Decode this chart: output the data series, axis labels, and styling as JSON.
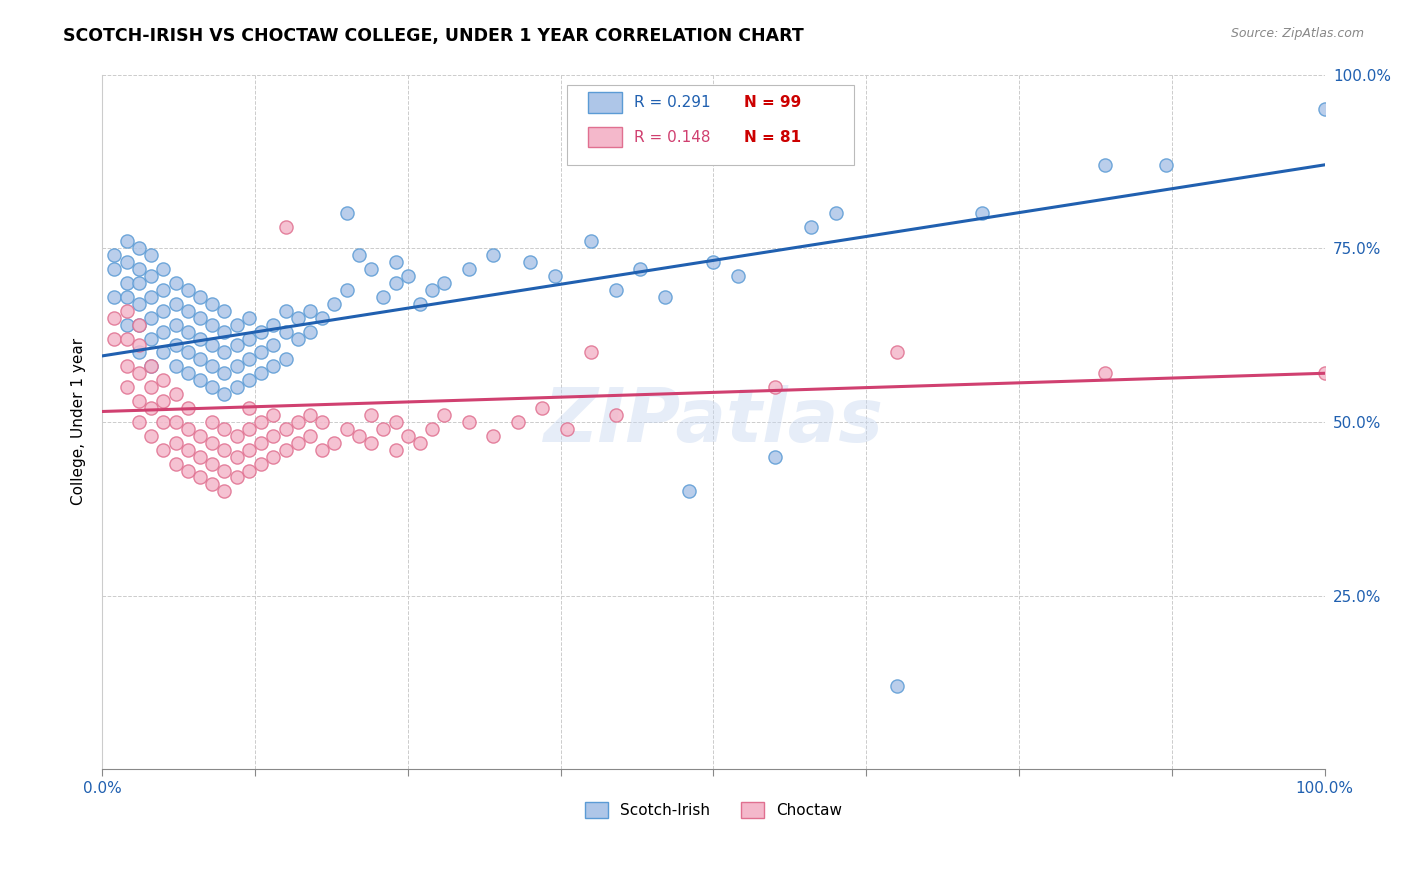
{
  "title": "SCOTCH-IRISH VS CHOCTAW COLLEGE, UNDER 1 YEAR CORRELATION CHART",
  "source": "Source: ZipAtlas.com",
  "ylabel": "College, Under 1 year",
  "xlabel": "",
  "xlim": [
    0.0,
    1.0
  ],
  "ylim": [
    0.0,
    1.0
  ],
  "xticks": [
    0.0,
    0.125,
    0.25,
    0.375,
    0.5,
    0.625,
    0.75,
    0.875,
    1.0
  ],
  "yticks": [
    0.0,
    0.25,
    0.5,
    0.75,
    1.0
  ],
  "xtick_labels": [
    "0.0%",
    "",
    "",
    "",
    "",
    "",
    "",
    "",
    "100.0%"
  ],
  "ytick_labels_left": [
    "",
    "25.0%",
    "50.0%",
    "75.0%",
    "100.0%"
  ],
  "ytick_labels_right": [
    "",
    "25.0%",
    "50.0%",
    "75.0%",
    "100.0%"
  ],
  "scotch_irish_R": 0.291,
  "scotch_irish_N": 99,
  "choctaw_R": 0.148,
  "choctaw_N": 81,
  "scotch_irish_color": "#aec6e8",
  "scotch_irish_edge": "#5b9bd5",
  "choctaw_color": "#f4b8cb",
  "choctaw_edge": "#e07090",
  "line_scotch_color": "#2060b0",
  "line_choctaw_color": "#d04070",
  "watermark": "ZIPatlas",
  "scotch_irish_points": [
    [
      0.01,
      0.68
    ],
    [
      0.01,
      0.72
    ],
    [
      0.01,
      0.74
    ],
    [
      0.02,
      0.64
    ],
    [
      0.02,
      0.68
    ],
    [
      0.02,
      0.7
    ],
    [
      0.02,
      0.73
    ],
    [
      0.02,
      0.76
    ],
    [
      0.03,
      0.6
    ],
    [
      0.03,
      0.64
    ],
    [
      0.03,
      0.67
    ],
    [
      0.03,
      0.7
    ],
    [
      0.03,
      0.72
    ],
    [
      0.03,
      0.75
    ],
    [
      0.04,
      0.58
    ],
    [
      0.04,
      0.62
    ],
    [
      0.04,
      0.65
    ],
    [
      0.04,
      0.68
    ],
    [
      0.04,
      0.71
    ],
    [
      0.04,
      0.74
    ],
    [
      0.05,
      0.6
    ],
    [
      0.05,
      0.63
    ],
    [
      0.05,
      0.66
    ],
    [
      0.05,
      0.69
    ],
    [
      0.05,
      0.72
    ],
    [
      0.06,
      0.58
    ],
    [
      0.06,
      0.61
    ],
    [
      0.06,
      0.64
    ],
    [
      0.06,
      0.67
    ],
    [
      0.06,
      0.7
    ],
    [
      0.07,
      0.57
    ],
    [
      0.07,
      0.6
    ],
    [
      0.07,
      0.63
    ],
    [
      0.07,
      0.66
    ],
    [
      0.07,
      0.69
    ],
    [
      0.08,
      0.56
    ],
    [
      0.08,
      0.59
    ],
    [
      0.08,
      0.62
    ],
    [
      0.08,
      0.65
    ],
    [
      0.08,
      0.68
    ],
    [
      0.09,
      0.55
    ],
    [
      0.09,
      0.58
    ],
    [
      0.09,
      0.61
    ],
    [
      0.09,
      0.64
    ],
    [
      0.09,
      0.67
    ],
    [
      0.1,
      0.54
    ],
    [
      0.1,
      0.57
    ],
    [
      0.1,
      0.6
    ],
    [
      0.1,
      0.63
    ],
    [
      0.1,
      0.66
    ],
    [
      0.11,
      0.55
    ],
    [
      0.11,
      0.58
    ],
    [
      0.11,
      0.61
    ],
    [
      0.11,
      0.64
    ],
    [
      0.12,
      0.56
    ],
    [
      0.12,
      0.59
    ],
    [
      0.12,
      0.62
    ],
    [
      0.12,
      0.65
    ],
    [
      0.13,
      0.57
    ],
    [
      0.13,
      0.6
    ],
    [
      0.13,
      0.63
    ],
    [
      0.14,
      0.58
    ],
    [
      0.14,
      0.61
    ],
    [
      0.14,
      0.64
    ],
    [
      0.15,
      0.59
    ],
    [
      0.15,
      0.63
    ],
    [
      0.15,
      0.66
    ],
    [
      0.16,
      0.62
    ],
    [
      0.16,
      0.65
    ],
    [
      0.17,
      0.63
    ],
    [
      0.17,
      0.66
    ],
    [
      0.18,
      0.65
    ],
    [
      0.19,
      0.67
    ],
    [
      0.2,
      0.8
    ],
    [
      0.2,
      0.69
    ],
    [
      0.21,
      0.74
    ],
    [
      0.22,
      0.72
    ],
    [
      0.23,
      0.68
    ],
    [
      0.24,
      0.7
    ],
    [
      0.24,
      0.73
    ],
    [
      0.25,
      0.71
    ],
    [
      0.26,
      0.67
    ],
    [
      0.27,
      0.69
    ],
    [
      0.28,
      0.7
    ],
    [
      0.3,
      0.72
    ],
    [
      0.32,
      0.74
    ],
    [
      0.35,
      0.73
    ],
    [
      0.37,
      0.71
    ],
    [
      0.4,
      0.76
    ],
    [
      0.42,
      0.69
    ],
    [
      0.44,
      0.72
    ],
    [
      0.46,
      0.68
    ],
    [
      0.48,
      0.4
    ],
    [
      0.5,
      0.73
    ],
    [
      0.52,
      0.71
    ],
    [
      0.55,
      0.45
    ],
    [
      0.58,
      0.78
    ],
    [
      0.6,
      0.8
    ],
    [
      0.65,
      0.12
    ],
    [
      0.72,
      0.8
    ],
    [
      0.82,
      0.87
    ],
    [
      0.87,
      0.87
    ],
    [
      1.0,
      0.95
    ]
  ],
  "choctaw_points": [
    [
      0.01,
      0.62
    ],
    [
      0.01,
      0.65
    ],
    [
      0.02,
      0.55
    ],
    [
      0.02,
      0.58
    ],
    [
      0.02,
      0.62
    ],
    [
      0.02,
      0.66
    ],
    [
      0.03,
      0.5
    ],
    [
      0.03,
      0.53
    ],
    [
      0.03,
      0.57
    ],
    [
      0.03,
      0.61
    ],
    [
      0.03,
      0.64
    ],
    [
      0.04,
      0.48
    ],
    [
      0.04,
      0.52
    ],
    [
      0.04,
      0.55
    ],
    [
      0.04,
      0.58
    ],
    [
      0.05,
      0.46
    ],
    [
      0.05,
      0.5
    ],
    [
      0.05,
      0.53
    ],
    [
      0.05,
      0.56
    ],
    [
      0.06,
      0.44
    ],
    [
      0.06,
      0.47
    ],
    [
      0.06,
      0.5
    ],
    [
      0.06,
      0.54
    ],
    [
      0.07,
      0.43
    ],
    [
      0.07,
      0.46
    ],
    [
      0.07,
      0.49
    ],
    [
      0.07,
      0.52
    ],
    [
      0.08,
      0.42
    ],
    [
      0.08,
      0.45
    ],
    [
      0.08,
      0.48
    ],
    [
      0.09,
      0.41
    ],
    [
      0.09,
      0.44
    ],
    [
      0.09,
      0.47
    ],
    [
      0.09,
      0.5
    ],
    [
      0.1,
      0.4
    ],
    [
      0.1,
      0.43
    ],
    [
      0.1,
      0.46
    ],
    [
      0.1,
      0.49
    ],
    [
      0.11,
      0.42
    ],
    [
      0.11,
      0.45
    ],
    [
      0.11,
      0.48
    ],
    [
      0.12,
      0.43
    ],
    [
      0.12,
      0.46
    ],
    [
      0.12,
      0.49
    ],
    [
      0.12,
      0.52
    ],
    [
      0.13,
      0.44
    ],
    [
      0.13,
      0.47
    ],
    [
      0.13,
      0.5
    ],
    [
      0.14,
      0.45
    ],
    [
      0.14,
      0.48
    ],
    [
      0.14,
      0.51
    ],
    [
      0.15,
      0.78
    ],
    [
      0.15,
      0.46
    ],
    [
      0.15,
      0.49
    ],
    [
      0.16,
      0.47
    ],
    [
      0.16,
      0.5
    ],
    [
      0.17,
      0.48
    ],
    [
      0.17,
      0.51
    ],
    [
      0.18,
      0.46
    ],
    [
      0.18,
      0.5
    ],
    [
      0.19,
      0.47
    ],
    [
      0.2,
      0.49
    ],
    [
      0.21,
      0.48
    ],
    [
      0.22,
      0.47
    ],
    [
      0.22,
      0.51
    ],
    [
      0.23,
      0.49
    ],
    [
      0.24,
      0.46
    ],
    [
      0.24,
      0.5
    ],
    [
      0.25,
      0.48
    ],
    [
      0.26,
      0.47
    ],
    [
      0.27,
      0.49
    ],
    [
      0.28,
      0.51
    ],
    [
      0.3,
      0.5
    ],
    [
      0.32,
      0.48
    ],
    [
      0.34,
      0.5
    ],
    [
      0.36,
      0.52
    ],
    [
      0.38,
      0.49
    ],
    [
      0.4,
      0.6
    ],
    [
      0.42,
      0.51
    ],
    [
      0.55,
      0.55
    ],
    [
      0.65,
      0.6
    ],
    [
      0.82,
      0.57
    ],
    [
      1.0,
      0.57
    ]
  ]
}
